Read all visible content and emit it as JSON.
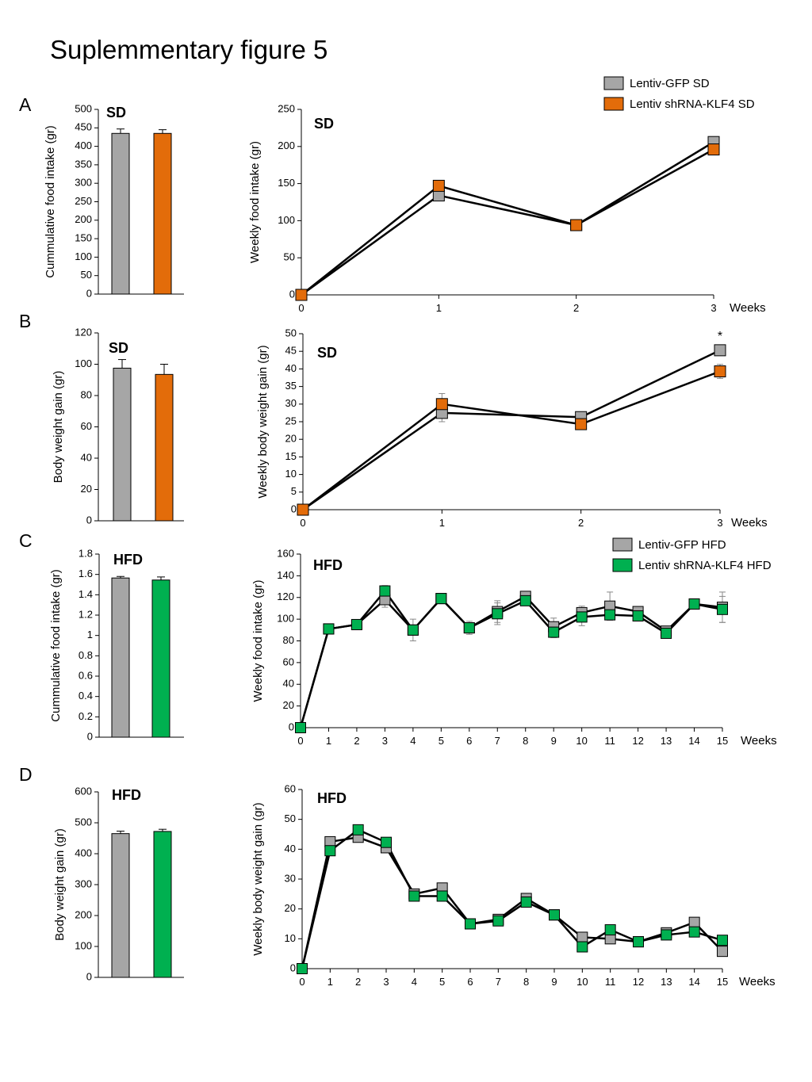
{
  "page": {
    "title": "Suplemmentary figure 5"
  },
  "panel_letters": [
    "A",
    "B",
    "C",
    "D"
  ],
  "colors": {
    "gfp": "#a6a6a6",
    "klf4_sd": "#e36c0a",
    "klf4_hfd": "#00b050",
    "line": "#000000"
  },
  "chart_data": [
    {
      "id": "A-bar",
      "panel": "A",
      "type": "bar",
      "tag": "SD",
      "ylabel": "Cummulative food intake (gr)",
      "ylim": [
        0,
        500
      ],
      "yticks": [
        0,
        50,
        100,
        150,
        200,
        250,
        300,
        350,
        400,
        450,
        500
      ],
      "ytick_labels": [
        "0",
        "50",
        "100",
        "150",
        "200",
        "250",
        "300",
        "350",
        "400",
        "450",
        "500"
      ],
      "series": [
        {
          "name": "Lentiv-GFP SD",
          "color": "#a6a6a6",
          "value": 435,
          "err": 12
        },
        {
          "name": "Lentiv shRNA-KLF4 SD",
          "color": "#e36c0a",
          "value": 435,
          "err": 10
        }
      ]
    },
    {
      "id": "A-line",
      "panel": "A",
      "type": "line",
      "tag": "SD",
      "ylabel": "Weekly food intake (gr)",
      "xlabel": "Weeks",
      "ylim": [
        0,
        250
      ],
      "yticks": [
        0,
        50,
        100,
        150,
        200,
        250
      ],
      "ytick_labels": [
        "0",
        "50",
        "100",
        "150",
        "200",
        "250"
      ],
      "x": [
        0,
        1,
        2,
        3
      ],
      "xtick_labels": [
        "0",
        "1",
        "2",
        "3"
      ],
      "series": [
        {
          "name": "Lentiv-GFP SD",
          "color": "#a6a6a6",
          "values": [
            0,
            134,
            94,
            206
          ],
          "err": [
            0,
            0,
            0,
            0
          ]
        },
        {
          "name": "Lentiv shRNA-KLF4 SD",
          "color": "#e36c0a",
          "values": [
            0,
            147,
            94,
            196
          ],
          "err": [
            0,
            0,
            0,
            0
          ]
        }
      ],
      "legend": {
        "position": "top-right",
        "entries": [
          "Lentiv-GFP SD",
          "Lentiv shRNA-KLF4 SD"
        ]
      }
    },
    {
      "id": "B-bar",
      "panel": "B",
      "type": "bar",
      "tag": "SD",
      "ylabel": "Body weight gain (gr)",
      "ylim": [
        0,
        120
      ],
      "yticks": [
        0,
        20,
        40,
        60,
        80,
        100,
        120
      ],
      "ytick_labels": [
        "0",
        "20",
        "40",
        "60",
        "80",
        "100",
        "120"
      ],
      "series": [
        {
          "name": "Lentiv-GFP SD",
          "color": "#a6a6a6",
          "value": 97.5,
          "err": 5.5
        },
        {
          "name": "Lentiv shRNA-KLF4 SD",
          "color": "#e36c0a",
          "value": 93.5,
          "err": 6.5
        }
      ]
    },
    {
      "id": "B-line",
      "panel": "B",
      "type": "line",
      "tag": "SD",
      "ylabel": "Weekly body weight gain (gr)",
      "xlabel": "Weeks",
      "ylim": [
        0,
        50
      ],
      "yticks": [
        0,
        5,
        10,
        15,
        20,
        25,
        30,
        35,
        40,
        45,
        50
      ],
      "ytick_labels": [
        "0",
        "5",
        "10",
        "15",
        "20",
        "25",
        "30",
        "35",
        "40",
        "45",
        "50"
      ],
      "x": [
        0,
        1,
        2,
        3
      ],
      "xtick_labels": [
        "0",
        "1",
        "2",
        "3"
      ],
      "series": [
        {
          "name": "Lentiv-GFP SD",
          "color": "#a6a6a6",
          "values": [
            0,
            27.5,
            26.3,
            45.3
          ],
          "err": [
            0,
            2.5,
            1,
            1
          ]
        },
        {
          "name": "Lentiv shRNA-KLF4 SD",
          "color": "#e36c0a",
          "values": [
            0,
            30,
            24.3,
            39.3
          ],
          "err": [
            0,
            3,
            1.5,
            2
          ]
        }
      ],
      "annotations": [
        {
          "x": 3,
          "text": "*"
        }
      ]
    },
    {
      "id": "C-bar",
      "panel": "C",
      "type": "bar",
      "tag": "HFD",
      "ylabel": "Cummulative food intake (gr)",
      "ylim": [
        0,
        1.8
      ],
      "yticks": [
        0,
        0.2,
        0.4,
        0.6,
        0.8,
        1,
        1.2,
        1.4,
        1.6,
        1.8
      ],
      "ytick_labels": [
        "0",
        "0.2",
        "0.4",
        "0.6",
        "0.8",
        "1",
        "1.2",
        "1.4",
        "1.6",
        "1.8"
      ],
      "series": [
        {
          "name": "Lentiv-GFP HFD",
          "color": "#a6a6a6",
          "value": 1.565,
          "err": 0.015
        },
        {
          "name": "Lentiv shRNA-KLF4 HFD",
          "color": "#00b050",
          "value": 1.545,
          "err": 0.03
        }
      ]
    },
    {
      "id": "C-line",
      "panel": "C",
      "type": "line",
      "tag": "HFD",
      "ylabel": "Weekly food intake (gr)",
      "xlabel": "Weeks",
      "ylim": [
        0,
        160
      ],
      "yticks": [
        0,
        20,
        40,
        60,
        80,
        100,
        120,
        140,
        160
      ],
      "ytick_labels": [
        "0",
        "20",
        "40",
        "60",
        "80",
        "100",
        "120",
        "140",
        "160"
      ],
      "x": [
        0,
        1,
        2,
        3,
        4,
        5,
        6,
        7,
        8,
        9,
        10,
        11,
        12,
        13,
        14,
        15
      ],
      "xtick_labels": [
        "0",
        "1",
        "2",
        "3",
        "4",
        "5",
        "6",
        "7",
        "8",
        "9",
        "10",
        "11",
        "12",
        "13",
        "14",
        "15"
      ],
      "series": [
        {
          "name": "Lentiv-GFP HFD",
          "color": "#a6a6a6",
          "values": [
            0,
            91,
            95,
            118,
            90,
            119,
            92,
            107,
            121,
            93,
            106,
            112,
            107,
            89,
            114,
            111
          ],
          "err": [
            0,
            0,
            0,
            7,
            10,
            0,
            6,
            10,
            0,
            8,
            6,
            13,
            0,
            0,
            0,
            14
          ]
        },
        {
          "name": "Lentiv shRNA-KLF4 HFD",
          "color": "#00b050",
          "values": [
            0,
            91,
            95,
            126,
            90,
            119,
            92,
            105,
            117,
            88,
            102,
            104,
            103,
            87,
            114,
            109
          ],
          "err": [
            0,
            0,
            0,
            5,
            0,
            0,
            4,
            10,
            0,
            5,
            8,
            0,
            0,
            0,
            0,
            12
          ]
        }
      ],
      "legend": {
        "position": "top-right",
        "entries": [
          "Lentiv-GFP HFD",
          "Lentiv shRNA-KLF4 HFD"
        ]
      }
    },
    {
      "id": "D-bar",
      "panel": "D",
      "type": "bar",
      "tag": "HFD",
      "ylabel": "Body weight  gain (gr)",
      "ylim": [
        0,
        600
      ],
      "yticks": [
        0,
        100,
        200,
        300,
        400,
        500,
        600
      ],
      "ytick_labels": [
        "0",
        "100",
        "200",
        "300",
        "400",
        "500",
        "600"
      ],
      "series": [
        {
          "name": "Lentiv-GFP HFD",
          "color": "#a6a6a6",
          "value": 465,
          "err": 8
        },
        {
          "name": "Lentiv shRNA-KLF4 HFD",
          "color": "#00b050",
          "value": 472,
          "err": 7
        }
      ]
    },
    {
      "id": "D-line",
      "panel": "D",
      "type": "line",
      "tag": "HFD",
      "ylabel": "Weekly body weight gain (gr)",
      "xlabel": "Weeks",
      "ylim": [
        0,
        60
      ],
      "yticks": [
        0,
        10,
        20,
        30,
        40,
        50,
        60
      ],
      "ytick_labels": [
        "0",
        "10",
        "20",
        "30",
        "40",
        "50",
        "60"
      ],
      "x": [
        0,
        1,
        2,
        3,
        4,
        5,
        6,
        7,
        8,
        9,
        10,
        11,
        12,
        13,
        14,
        15
      ],
      "xtick_labels": [
        "0",
        "1",
        "2",
        "3",
        "4",
        "5",
        "6",
        "7",
        "8",
        "9",
        "10",
        "11",
        "12",
        "13",
        "14",
        "15"
      ],
      "series": [
        {
          "name": "Lentiv-GFP HFD",
          "color": "#a6a6a6",
          "values": [
            0,
            42.5,
            44,
            40.5,
            25,
            27,
            15,
            16.5,
            23.5,
            18,
            10.5,
            10,
            9,
            12,
            15.5,
            5.8
          ],
          "err": [
            0,
            0,
            0,
            0,
            0,
            0,
            0,
            0,
            0,
            0,
            0,
            0,
            0,
            0,
            0,
            0
          ]
        },
        {
          "name": "Lentiv shRNA-KLF4 HFD",
          "color": "#00b050",
          "values": [
            0,
            39.5,
            46.5,
            42.3,
            24.3,
            24.3,
            15,
            16,
            22.3,
            18,
            7.3,
            13,
            9,
            11.3,
            12.3,
            9.5
          ],
          "err": [
            0,
            0,
            0,
            0,
            0,
            0,
            0,
            0,
            0,
            0,
            0,
            0,
            0,
            0,
            0,
            0
          ]
        }
      ]
    }
  ]
}
